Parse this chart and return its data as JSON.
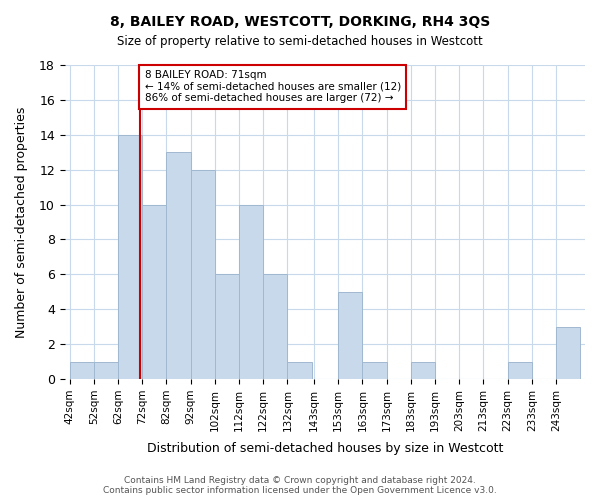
{
  "title": "8, BAILEY ROAD, WESTCOTT, DORKING, RH4 3QS",
  "subtitle": "Size of property relative to semi-detached houses in Westcott",
  "xlabel": "Distribution of semi-detached houses by size in Westcott",
  "ylabel": "Number of semi-detached properties",
  "bin_labels": [
    "42sqm",
    "52sqm",
    "62sqm",
    "72sqm",
    "82sqm",
    "92sqm",
    "102sqm",
    "112sqm",
    "122sqm",
    "132sqm",
    "143sqm",
    "153sqm",
    "163sqm",
    "173sqm",
    "183sqm",
    "193sqm",
    "203sqm",
    "213sqm",
    "223sqm",
    "233sqm",
    "243sqm"
  ],
  "bin_edges": [
    42,
    52,
    62,
    72,
    82,
    92,
    102,
    112,
    122,
    132,
    143,
    153,
    163,
    173,
    183,
    193,
    203,
    213,
    223,
    233,
    243
  ],
  "counts": [
    1,
    1,
    14,
    10,
    13,
    12,
    6,
    10,
    6,
    1,
    0,
    5,
    1,
    0,
    1,
    0,
    0,
    0,
    1,
    0,
    3
  ],
  "bar_color": "#c8d9eb",
  "bar_edge_color": "#a0b8d0",
  "property_line_x": 71,
  "annotation_title": "8 BAILEY ROAD: 71sqm",
  "annotation_line1": "← 14% of semi-detached houses are smaller (12)",
  "annotation_line2": "86% of semi-detached houses are larger (72) →",
  "annotation_box_color": "#ffffff",
  "annotation_box_edge_color": "#cc0000",
  "property_line_color": "#cc0000",
  "ylim": [
    0,
    18
  ],
  "yticks": [
    0,
    2,
    4,
    6,
    8,
    10,
    12,
    14,
    16,
    18
  ],
  "footer1": "Contains HM Land Registry data © Crown copyright and database right 2024.",
  "footer2": "Contains public sector information licensed under the Open Government Licence v3.0.",
  "background_color": "#ffffff",
  "grid_color": "#c8d9eb"
}
